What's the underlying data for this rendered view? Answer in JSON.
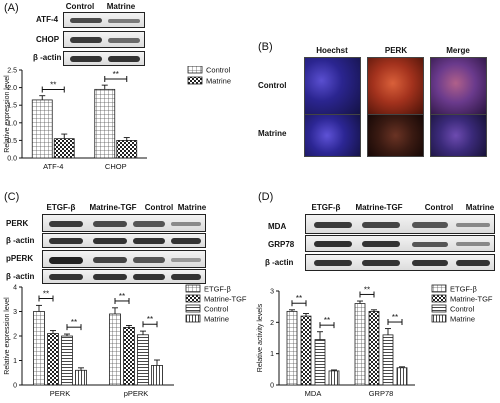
{
  "panels": {
    "A": {
      "label": "(A)",
      "blot": {
        "columns": [
          "Control",
          "Matrine"
        ],
        "rows": [
          "ATF-4",
          "CHOP",
          "β -actin"
        ]
      }
    },
    "B": {
      "label": "(B)",
      "columns": [
        "Hoechst",
        "PERK",
        "Merge"
      ],
      "rows": [
        "Control",
        "Matrine"
      ]
    },
    "C": {
      "label": "(C)",
      "blot": {
        "columns": [
          "ETGF-β",
          "Matrine-TGF",
          "Control",
          "Matrine"
        ],
        "rows": [
          "PERK",
          "β -actin",
          "pPERK",
          "β -actin"
        ]
      }
    },
    "D": {
      "label": "(D)",
      "blot": {
        "columns": [
          "ETGF-β",
          "Matrine-TGF",
          "Control",
          "Matrine"
        ],
        "rows": [
          "MDA",
          "GRP78",
          "β -actin"
        ]
      }
    }
  },
  "colors": {
    "bar_stroke": "#222222",
    "text": "#111111"
  },
  "chart_data": [
    {
      "type": "bar",
      "panel": "A",
      "categories": [
        "ATF-4",
        "CHOP"
      ],
      "series": [
        {
          "name": "Control",
          "values": [
            1.65,
            1.95
          ],
          "errors": [
            0.12,
            0.12
          ],
          "pattern": "grid"
        },
        {
          "name": "Matrine",
          "values": [
            0.55,
            0.5
          ],
          "errors": [
            0.13,
            0.08
          ],
          "pattern": "check"
        }
      ],
      "ylabel": "Relative expression level",
      "ylim": [
        0,
        2.5
      ],
      "yticks": [
        "0.0",
        "0.5",
        "1.0",
        "1.5",
        "2.0",
        "2.5"
      ],
      "significance": [
        "**",
        "**"
      ],
      "legend": "right"
    },
    {
      "type": "bar",
      "panel": "C",
      "categories": [
        "PERK",
        "pPERK"
      ],
      "series": [
        {
          "name": "ETGF-β",
          "values": [
            3.0,
            2.9
          ],
          "errors": [
            0.25,
            0.25
          ],
          "pattern": "grid"
        },
        {
          "name": "Matrine-TGF",
          "values": [
            2.1,
            2.35
          ],
          "errors": [
            0.12,
            0.08
          ],
          "pattern": "check"
        },
        {
          "name": "Control",
          "values": [
            2.0,
            2.05
          ],
          "errors": [
            0.08,
            0.15
          ],
          "pattern": "hlines"
        },
        {
          "name": "Matrine",
          "values": [
            0.6,
            0.8
          ],
          "errors": [
            0.1,
            0.22
          ],
          "pattern": "vlines"
        }
      ],
      "ylabel": "Relative expression level",
      "ylim": [
        0,
        4
      ],
      "yticks": [
        "0",
        "1",
        "2",
        "3",
        "4"
      ],
      "significance": [
        "**",
        "**",
        "**",
        "**"
      ],
      "legend": "right"
    },
    {
      "type": "bar",
      "panel": "D",
      "categories": [
        "MDA",
        "GRP78"
      ],
      "series": [
        {
          "name": "ETGF-β",
          "values": [
            2.35,
            2.6
          ],
          "errors": [
            0.05,
            0.08
          ],
          "pattern": "grid"
        },
        {
          "name": "Matrine-TGF",
          "values": [
            2.2,
            2.35
          ],
          "errors": [
            0.08,
            0.05
          ],
          "pattern": "check"
        },
        {
          "name": "Control",
          "values": [
            1.45,
            1.6
          ],
          "errors": [
            0.25,
            0.2
          ],
          "pattern": "hlines"
        },
        {
          "name": "Matrine",
          "values": [
            0.45,
            0.55
          ],
          "errors": [
            0.03,
            0.03
          ],
          "pattern": "vlines"
        }
      ],
      "ylabel": "Relative activity levels",
      "ylim": [
        0,
        3
      ],
      "yticks": [
        "0",
        "1",
        "2",
        "3"
      ],
      "significance": [
        "**",
        "**",
        "**",
        "**"
      ],
      "legend": "right"
    }
  ]
}
